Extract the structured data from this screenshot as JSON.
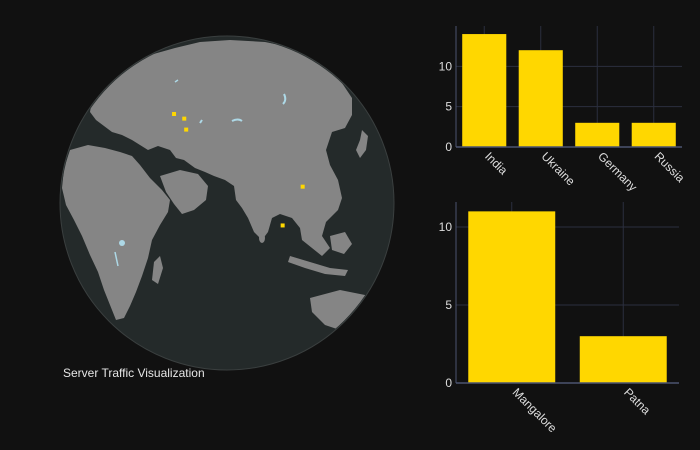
{
  "caption": "Server Traffic Visualization",
  "colors": {
    "background": "#111111",
    "ocean": "#242a2a",
    "land": "#858585",
    "lakes": "#add8e6",
    "marker": "#ffd700",
    "bar": "#ffd700",
    "grid": "#2b2f3f",
    "axis": "#4c5470"
  },
  "chart_data": [
    {
      "type": "scatter-geo",
      "projection": "orthographic",
      "points": [
        {
          "lon": 31,
          "lat": 51
        },
        {
          "lon": 34,
          "lat": 47
        },
        {
          "lon": 24,
          "lat": 52
        },
        {
          "lon": 85,
          "lat": 25
        },
        {
          "lon": 75,
          "lat": 13
        }
      ]
    },
    {
      "type": "bar",
      "categories": [
        "India",
        "Ukraine",
        "Germany",
        "Russia"
      ],
      "values": [
        14,
        12,
        3,
        3
      ],
      "ylim": [
        0,
        15
      ],
      "yticks": [
        0,
        5,
        10
      ]
    },
    {
      "type": "bar",
      "categories": [
        "Mangalore",
        "Patna"
      ],
      "values": [
        11,
        3
      ],
      "ylim": [
        0,
        11.6
      ],
      "yticks": [
        0,
        5,
        10
      ]
    }
  ]
}
